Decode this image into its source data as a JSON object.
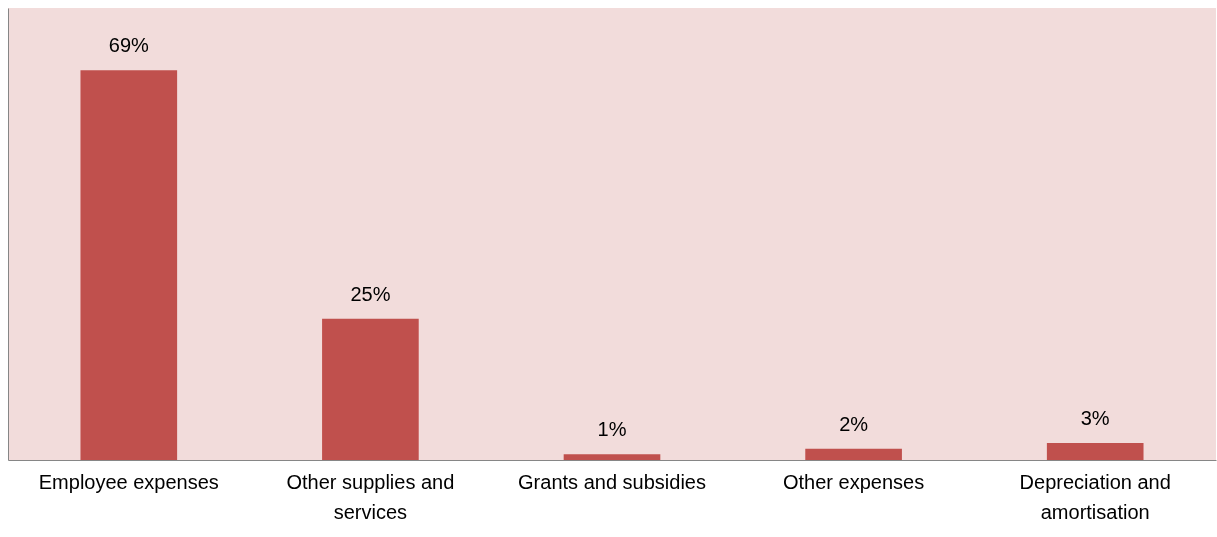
{
  "chart_data": {
    "type": "bar",
    "categories": [
      "Employee expenses",
      "Other supplies and services",
      "Grants and subsidies",
      "Other expenses",
      "Depreciation and amortisation"
    ],
    "values": [
      69,
      25,
      1,
      2,
      3
    ],
    "color": "#c0504d",
    "value_labels": [
      "69%",
      "25%",
      "1%",
      "2%",
      "3%"
    ],
    "ylim": [
      0,
      80
    ],
    "grid": false
  }
}
